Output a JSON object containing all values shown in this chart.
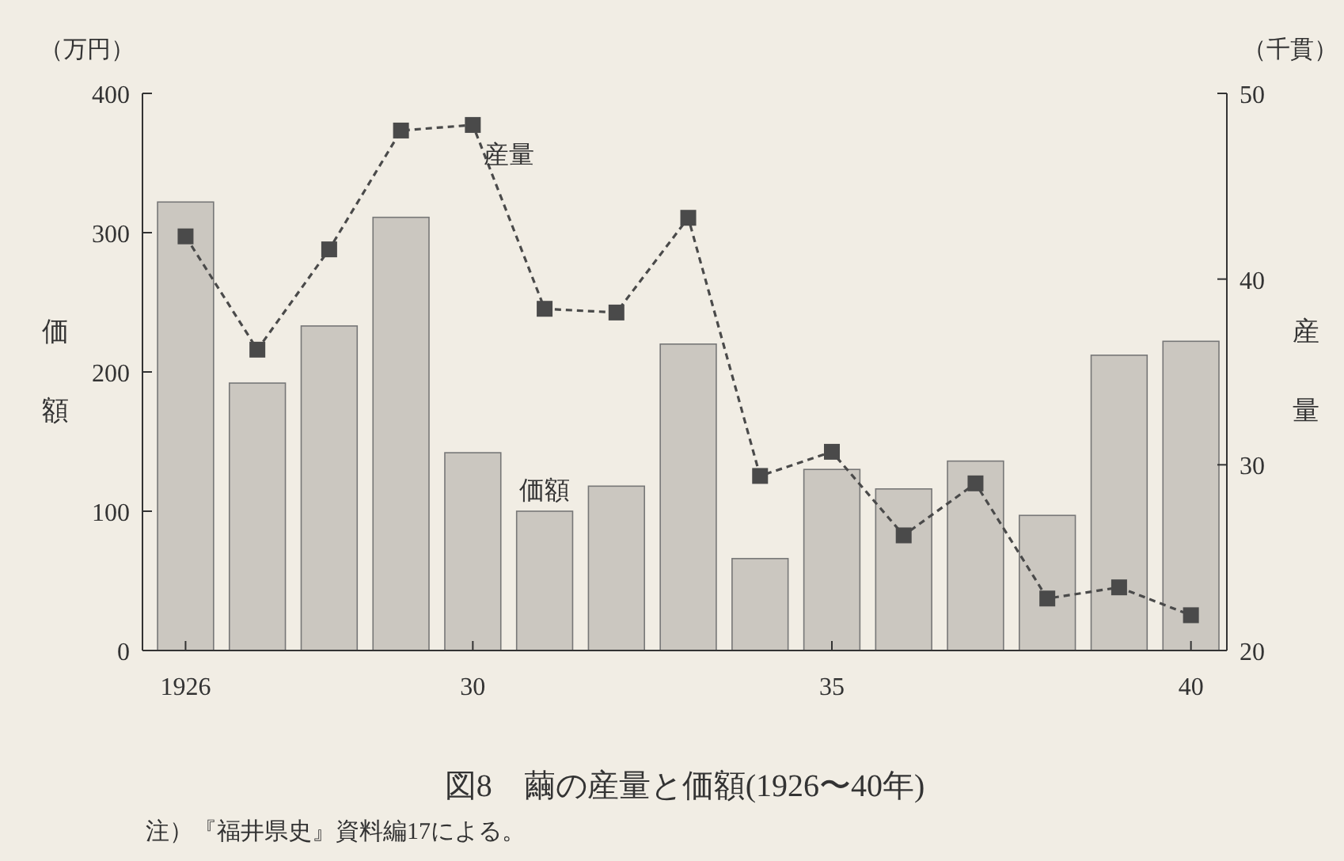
{
  "chart_data": {
    "type": "bar",
    "title": "図8　繭の産量と価額(1926〜40年)",
    "ylabel": "価額",
    "y2label": "産量",
    "annotations": [
      "（万円）",
      "（千貫）",
      "注）『福井県史』資料編17による。"
    ],
    "x": [
      1926,
      1927,
      1928,
      1929,
      1930,
      1931,
      1932,
      1933,
      1934,
      1935,
      1936,
      1937,
      1938,
      1939,
      1940
    ],
    "xlim": [
      1925.4,
      1940.5
    ],
    "xticks": [
      1926,
      {
        "value": 1930,
        "label": "30"
      },
      {
        "value": 1935,
        "label": "35"
      },
      {
        "value": 1940,
        "label": "40"
      }
    ],
    "ylim": [
      0,
      400
    ],
    "yticks": [
      0,
      100,
      200,
      300,
      400
    ],
    "y2lim": [
      20,
      50
    ],
    "y2ticks": [
      20,
      30,
      40,
      50
    ],
    "series": [
      {
        "name": "価額",
        "color": "#cbc7c0",
        "values": [
          322,
          192,
          233,
          311,
          142,
          100,
          118,
          220,
          66,
          130,
          116,
          136,
          97,
          212,
          222
        ]
      },
      {
        "name": "産量",
        "type": "line",
        "axis": "y2",
        "color": "#4a4a4a",
        "marker": "square",
        "line_style": "dashed",
        "values": [
          42.3,
          36.2,
          41.6,
          48.0,
          48.3,
          38.4,
          38.2,
          43.3,
          29.4,
          30.7,
          26.2,
          29.0,
          22.8,
          23.4,
          21.9
        ]
      }
    ]
  }
}
